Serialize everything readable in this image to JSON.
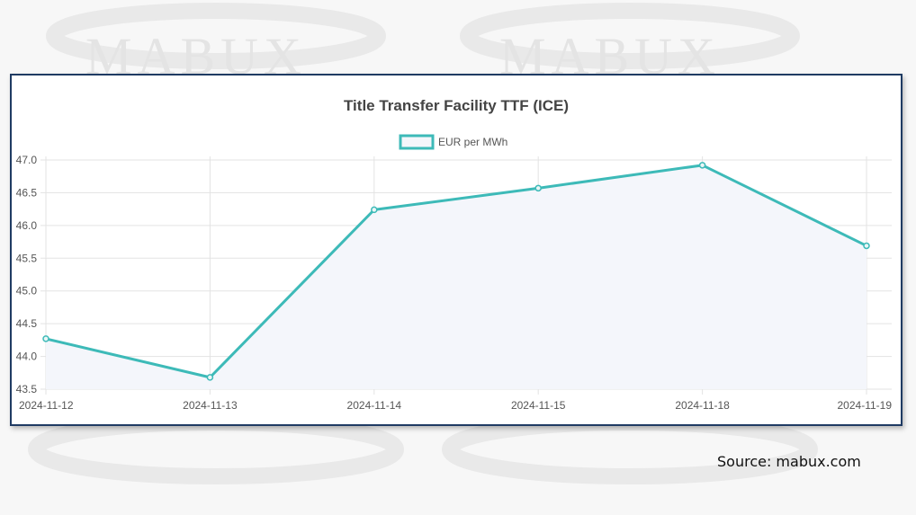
{
  "watermark_text": "MABUX",
  "source_text": "Source: mabux.com",
  "chart_data": {
    "type": "line",
    "title": "Title Transfer Facility TTF (ICE)",
    "xlabel": "",
    "ylabel": "",
    "categories": [
      "2024-11-12",
      "2024-11-13",
      "2024-11-14",
      "2024-11-15",
      "2024-11-18",
      "2024-11-19"
    ],
    "series": [
      {
        "name": "EUR per MWh",
        "values": [
          44.27,
          43.68,
          46.24,
          46.57,
          46.92,
          45.69
        ]
      }
    ],
    "ylim": [
      43.5,
      47.0
    ],
    "yticks": [
      "43.5",
      "44.0",
      "44.5",
      "45.0",
      "45.5",
      "46.0",
      "46.5",
      "47.0"
    ],
    "grid": true,
    "legend_position": "top-center",
    "colors": {
      "line": "#3dbab8",
      "fill": "#f4f6fb",
      "grid": "#e3e3e3",
      "frame": "#1f3b63"
    }
  }
}
